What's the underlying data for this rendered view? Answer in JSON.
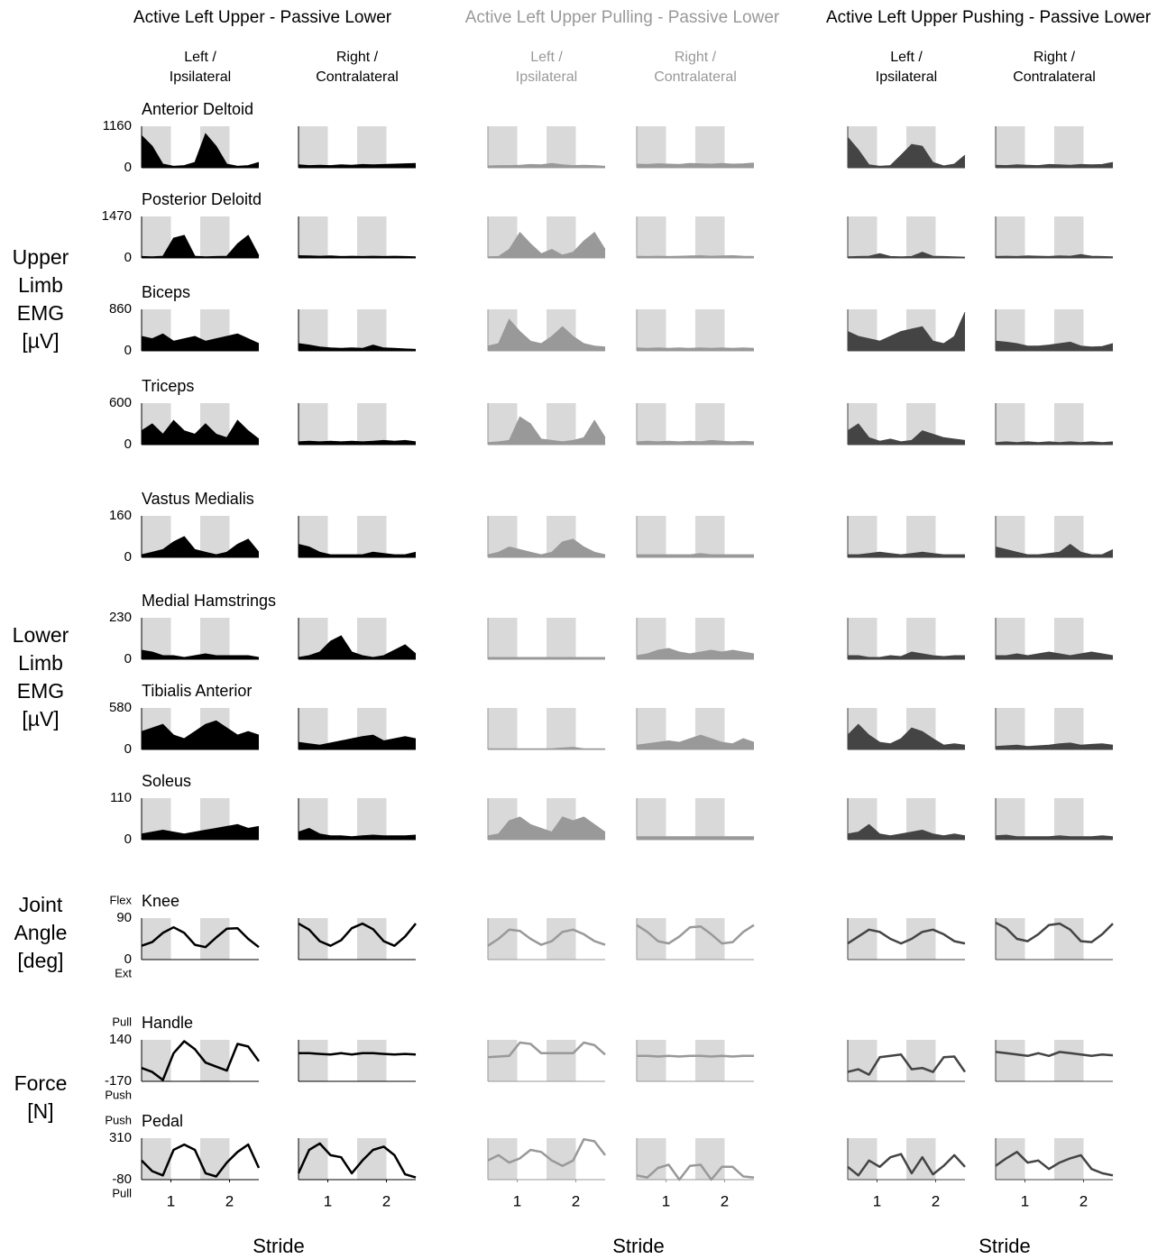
{
  "chart_data": {
    "type": "panel-grid",
    "xlim": [
      0,
      2
    ],
    "xticks": [
      {
        "value": 0.5,
        "label": "1"
      },
      {
        "value": 1.5,
        "label": "2"
      }
    ],
    "xlabel": "Stride",
    "conditions": [
      {
        "title": "Active Left Upper - Passive Lower",
        "color": "#000000",
        "columns": [
          [
            "Left /",
            "Ipsilateral"
          ],
          [
            "Right /",
            "Contralateral"
          ]
        ]
      },
      {
        "title": "Active Left Upper Pulling - Passive Lower",
        "color": "#999999",
        "columns": [
          [
            "Left /",
            "Ipsilateral"
          ],
          [
            "Right /",
            "Contralateral"
          ]
        ]
      },
      {
        "title": "Active Left Upper Pushing - Passive Lower",
        "color": "#444444",
        "columns": [
          [
            "Left /",
            "Ipsilateral"
          ],
          [
            "Right /",
            "Contralateral"
          ]
        ]
      }
    ],
    "groups": [
      {
        "label": [
          "Upper",
          "Limb",
          "EMG",
          "[µV]"
        ]
      },
      {
        "label": [
          "Lower",
          "Limb",
          "EMG",
          "[µV]"
        ]
      },
      {
        "label": [
          "Joint",
          "Angle",
          "[deg]"
        ]
      },
      {
        "label": [
          "Force",
          "[N]"
        ]
      }
    ],
    "rows": [
      {
        "name": "Anterior Deltoid",
        "style": "area",
        "ylim": [
          0,
          1160
        ],
        "yticks": [
          0,
          1160
        ],
        "values": [
          [
            900,
            600,
            100,
            40,
            60,
            150,
            950,
            600,
            100,
            40,
            60,
            150
          ],
          [
            80,
            60,
            70,
            60,
            80,
            70,
            90,
            80,
            90,
            100,
            110,
            120
          ],
          [
            50,
            60,
            60,
            70,
            90,
            80,
            120,
            80,
            60,
            70,
            60,
            40
          ],
          [
            100,
            90,
            110,
            100,
            90,
            120,
            110,
            100,
            120,
            100,
            110,
            130
          ],
          [
            850,
            500,
            80,
            40,
            60,
            350,
            650,
            600,
            150,
            50,
            100,
            350
          ],
          [
            70,
            60,
            80,
            70,
            60,
            90,
            80,
            70,
            90,
            80,
            90,
            150
          ]
        ]
      },
      {
        "name": "Posterior Deloitd",
        "style": "area",
        "ylim": [
          0,
          1470
        ],
        "yticks": [
          0,
          1470
        ],
        "values": [
          [
            50,
            40,
            60,
            700,
            800,
            60,
            40,
            50,
            60,
            500,
            800,
            80
          ],
          [
            80,
            70,
            60,
            70,
            50,
            60,
            50,
            60,
            50,
            60,
            50,
            40
          ],
          [
            40,
            50,
            300,
            900,
            500,
            150,
            300,
            100,
            200,
            600,
            900,
            300
          ],
          [
            60,
            50,
            60,
            50,
            60,
            70,
            80,
            60,
            70,
            80,
            60,
            50
          ],
          [
            40,
            50,
            60,
            150,
            50,
            40,
            50,
            200,
            60,
            50,
            40,
            30
          ],
          [
            50,
            60,
            50,
            70,
            60,
            50,
            70,
            60,
            120,
            60,
            50,
            40
          ]
        ]
      },
      {
        "name": "Biceps",
        "style": "area",
        "ylim": [
          0,
          860
        ],
        "yticks": [
          0,
          860
        ],
        "values": [
          [
            300,
            250,
            350,
            200,
            250,
            300,
            200,
            250,
            300,
            350,
            250,
            150
          ],
          [
            150,
            120,
            80,
            60,
            50,
            60,
            50,
            120,
            60,
            50,
            40,
            30
          ],
          [
            100,
            150,
            650,
            400,
            200,
            150,
            300,
            500,
            300,
            150,
            100,
            80
          ],
          [
            60,
            50,
            60,
            50,
            60,
            50,
            60,
            50,
            60,
            50,
            60,
            50
          ],
          [
            400,
            300,
            250,
            200,
            300,
            400,
            450,
            500,
            200,
            150,
            300,
            800
          ],
          [
            200,
            180,
            150,
            100,
            100,
            120,
            150,
            180,
            100,
            80,
            90,
            150
          ]
        ]
      },
      {
        "name": "Triceps",
        "style": "area",
        "ylim": [
          0,
          600
        ],
        "yticks": [
          0,
          600
        ],
        "values": [
          [
            200,
            300,
            150,
            350,
            200,
            150,
            300,
            150,
            100,
            350,
            200,
            80
          ],
          [
            40,
            50,
            40,
            50,
            40,
            50,
            40,
            50,
            60,
            50,
            60,
            40
          ],
          [
            30,
            40,
            60,
            400,
            300,
            80,
            60,
            40,
            60,
            100,
            350,
            100
          ],
          [
            40,
            50,
            40,
            50,
            40,
            50,
            40,
            60,
            50,
            40,
            50,
            40
          ],
          [
            200,
            300,
            100,
            50,
            80,
            40,
            60,
            200,
            150,
            100,
            80,
            60
          ],
          [
            30,
            40,
            30,
            40,
            30,
            40,
            30,
            40,
            30,
            40,
            30,
            40
          ]
        ]
      },
      {
        "name": "Vastus Medialis",
        "style": "area",
        "ylim": [
          0,
          160
        ],
        "yticks": [
          0,
          160
        ],
        "values": [
          [
            10,
            20,
            30,
            60,
            80,
            30,
            20,
            10,
            20,
            50,
            70,
            20
          ],
          [
            50,
            40,
            20,
            10,
            10,
            10,
            10,
            20,
            15,
            10,
            10,
            20
          ],
          [
            10,
            20,
            40,
            30,
            20,
            10,
            20,
            60,
            70,
            40,
            20,
            10
          ],
          [
            10,
            10,
            10,
            10,
            10,
            10,
            15,
            10,
            10,
            10,
            10,
            10
          ],
          [
            10,
            10,
            15,
            20,
            15,
            10,
            15,
            20,
            15,
            10,
            10,
            10
          ],
          [
            40,
            30,
            20,
            10,
            10,
            15,
            20,
            50,
            20,
            10,
            10,
            30
          ]
        ]
      },
      {
        "name": "Medial Hamstrings",
        "style": "area",
        "ylim": [
          0,
          230
        ],
        "yticks": [
          0,
          230
        ],
        "values": [
          [
            50,
            40,
            20,
            20,
            10,
            20,
            30,
            20,
            20,
            20,
            20,
            10
          ],
          [
            10,
            20,
            40,
            100,
            130,
            40,
            20,
            10,
            20,
            50,
            80,
            30
          ],
          [
            10,
            10,
            10,
            10,
            10,
            10,
            10,
            10,
            10,
            10,
            10,
            10
          ],
          [
            20,
            30,
            50,
            60,
            40,
            30,
            40,
            50,
            40,
            50,
            40,
            30
          ],
          [
            20,
            20,
            10,
            10,
            20,
            15,
            40,
            30,
            20,
            15,
            20,
            20
          ],
          [
            20,
            20,
            30,
            20,
            30,
            40,
            30,
            20,
            30,
            40,
            30,
            20
          ]
        ]
      },
      {
        "name": "Tibialis Anterior",
        "style": "area",
        "ylim": [
          0,
          580
        ],
        "yticks": [
          0,
          580
        ],
        "values": [
          [
            250,
            300,
            350,
            200,
            150,
            250,
            350,
            400,
            300,
            200,
            250,
            200
          ],
          [
            100,
            80,
            60,
            90,
            120,
            150,
            180,
            200,
            120,
            150,
            180,
            150
          ],
          [
            10,
            10,
            10,
            10,
            10,
            10,
            10,
            20,
            30,
            10,
            10,
            10
          ],
          [
            60,
            80,
            100,
            120,
            100,
            150,
            200,
            150,
            100,
            80,
            150,
            100
          ],
          [
            200,
            350,
            200,
            100,
            80,
            150,
            300,
            250,
            150,
            60,
            80,
            60
          ],
          [
            40,
            50,
            60,
            40,
            50,
            60,
            80,
            90,
            60,
            70,
            80,
            60
          ]
        ]
      },
      {
        "name": "Soleus",
        "style": "area",
        "ylim": [
          0,
          110
        ],
        "yticks": [
          0,
          110
        ],
        "values": [
          [
            15,
            20,
            25,
            20,
            15,
            20,
            25,
            30,
            35,
            40,
            30,
            35
          ],
          [
            20,
            30,
            15,
            10,
            10,
            8,
            10,
            12,
            10,
            10,
            10,
            12
          ],
          [
            10,
            15,
            50,
            60,
            40,
            30,
            20,
            60,
            50,
            60,
            40,
            20
          ],
          [
            8,
            8,
            8,
            8,
            8,
            8,
            8,
            8,
            8,
            8,
            8,
            8
          ],
          [
            15,
            20,
            40,
            15,
            10,
            15,
            20,
            25,
            15,
            10,
            15,
            10
          ],
          [
            10,
            12,
            8,
            8,
            8,
            8,
            10,
            8,
            8,
            8,
            10,
            8
          ]
        ]
      },
      {
        "name": "Knee",
        "style": "line",
        "ylim": [
          0,
          90
        ],
        "yticks": [
          0,
          90
        ],
        "axis_notes": [
          "Flex",
          "Ext"
        ],
        "values": [
          [
            30,
            38,
            58,
            70,
            58,
            32,
            27,
            48,
            67,
            68,
            45,
            27
          ],
          [
            78,
            65,
            40,
            30,
            42,
            68,
            78,
            66,
            40,
            30,
            50,
            78
          ],
          [
            30,
            45,
            65,
            62,
            45,
            32,
            40,
            60,
            65,
            55,
            40,
            32
          ],
          [
            75,
            60,
            40,
            35,
            50,
            70,
            72,
            55,
            35,
            38,
            60,
            75
          ],
          [
            35,
            50,
            65,
            60,
            45,
            35,
            45,
            60,
            65,
            55,
            40,
            35
          ],
          [
            80,
            68,
            45,
            40,
            55,
            75,
            78,
            65,
            40,
            38,
            55,
            78
          ]
        ]
      },
      {
        "name": "Handle",
        "style": "line",
        "ylim": [
          -170,
          140
        ],
        "yticks": [
          -170,
          140
        ],
        "axis_notes": [
          "Pull",
          "Push"
        ],
        "values": [
          [
            -70,
            -100,
            -160,
            40,
            130,
            70,
            -30,
            -60,
            -90,
            110,
            90,
            -20
          ],
          [
            40,
            40,
            35,
            30,
            40,
            30,
            40,
            40,
            35,
            30,
            35,
            30
          ],
          [
            10,
            15,
            20,
            120,
            110,
            40,
            40,
            40,
            40,
            120,
            100,
            30
          ],
          [
            20,
            20,
            15,
            20,
            15,
            20,
            20,
            15,
            20,
            15,
            20,
            20
          ],
          [
            -100,
            -80,
            -120,
            10,
            20,
            30,
            -80,
            -70,
            -100,
            10,
            15,
            -100
          ],
          [
            50,
            40,
            30,
            20,
            40,
            20,
            50,
            40,
            30,
            20,
            30,
            25
          ]
        ]
      },
      {
        "name": "Pedal",
        "style": "line",
        "ylim": [
          -80,
          310
        ],
        "yticks": [
          -80,
          310
        ],
        "axis_notes": [
          "Push",
          "Pull"
        ],
        "values": [
          [
            100,
            0,
            -40,
            200,
            250,
            200,
            -20,
            -50,
            80,
            180,
            250,
            30
          ],
          [
            -20,
            200,
            260,
            150,
            130,
            -20,
            100,
            200,
            230,
            150,
            -30,
            -60
          ],
          [
            100,
            150,
            80,
            120,
            200,
            180,
            100,
            50,
            100,
            300,
            280,
            150
          ],
          [
            -40,
            -60,
            30,
            60,
            -80,
            50,
            60,
            -80,
            40,
            40,
            -50,
            -60
          ],
          [
            40,
            -40,
            100,
            40,
            130,
            160,
            -20,
            130,
            -30,
            50,
            150,
            40
          ],
          [
            50,
            120,
            180,
            80,
            100,
            20,
            80,
            120,
            150,
            20,
            -20,
            -40
          ]
        ]
      }
    ]
  }
}
